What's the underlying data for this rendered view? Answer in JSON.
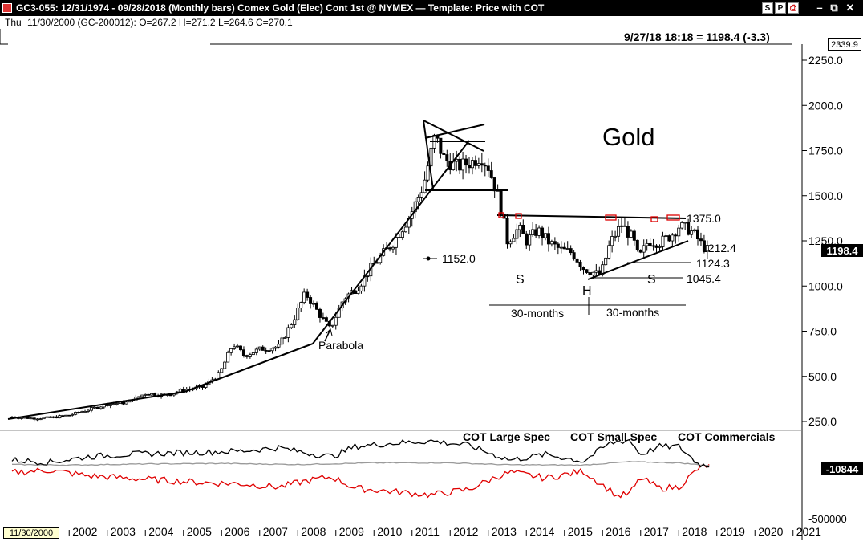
{
  "window": {
    "title": "GC3-055:  12/31/1974 - 09/28/2018  (Monthly bars)   Comex Gold (Elec) Cont 1st @ NYMEX  —  Template: Price with COT",
    "buttons": [
      "S",
      "P",
      "⎙"
    ]
  },
  "info_bar": {
    "day": "Thu",
    "ohlc": "11/30/2000 (GC-200012):  O=267.2  H=271.2  L=264.6  C=270.1"
  },
  "last_price": "9/27/18 18:18 = 1198.4 (-3.3)",
  "price_axis_top_label": "2339.9",
  "price_axis_current": "1198.4",
  "cot_axis_current": "-10844",
  "cursor_date": "11/30/2000",
  "chart_data": {
    "type": "candlestick",
    "title": "Gold",
    "price_axis": {
      "range": [
        50,
        2330
      ],
      "ticks": [
        250,
        500,
        750,
        1000,
        1250,
        1500,
        1750,
        2000,
        2250
      ],
      "tick_labels": [
        "250.0",
        "500.0",
        "750.0",
        "1000.0",
        "1250.0",
        "1500.0",
        "1750.0",
        "2000.0",
        "2250.0"
      ]
    },
    "x_axis": {
      "range": [
        2000.5,
        2021.2
      ],
      "years": [
        2002,
        2003,
        2004,
        2005,
        2006,
        2007,
        2008,
        2009,
        2010,
        2011,
        2012,
        2013,
        2014,
        2015,
        2016,
        2017,
        2018,
        2019,
        2020,
        2021
      ],
      "year_labels": [
        "2002",
        "2003",
        "2004",
        "2005",
        "2006",
        "2007",
        "2008",
        "2009",
        "2010",
        "2011",
        "2012",
        "2013",
        "2014",
        "2015",
        "2016",
        "2017",
        "2018",
        "2019",
        "2020",
        "2021"
      ]
    },
    "price_series": [
      [
        2000.5,
        275
      ],
      [
        2001.0,
        268
      ],
      [
        2001.5,
        270
      ],
      [
        2002.0,
        285
      ],
      [
        2002.5,
        315
      ],
      [
        2003.0,
        345
      ],
      [
        2003.5,
        355
      ],
      [
        2004.0,
        405
      ],
      [
        2004.5,
        395
      ],
      [
        2005.0,
        425
      ],
      [
        2005.5,
        440
      ],
      [
        2005.95,
        515
      ],
      [
        2006.3,
        680
      ],
      [
        2006.6,
        615
      ],
      [
        2007.0,
        650
      ],
      [
        2007.5,
        665
      ],
      [
        2007.9,
        820
      ],
      [
        2008.2,
        960
      ],
      [
        2008.6,
        835
      ],
      [
        2008.85,
        760
      ],
      [
        2009.2,
        930
      ],
      [
        2009.6,
        1000
      ],
      [
        2009.95,
        1110
      ],
      [
        2010.5,
        1240
      ],
      [
        2010.95,
        1390
      ],
      [
        2011.3,
        1560
      ],
      [
        2011.6,
        1830
      ],
      [
        2011.85,
        1700
      ],
      [
        2012.2,
        1660
      ],
      [
        2012.6,
        1690
      ],
      [
        2012.8,
        1720
      ],
      [
        2013.0,
        1660
      ],
      [
        2013.3,
        1470
      ],
      [
        2013.5,
        1250
      ],
      [
        2013.8,
        1320
      ],
      [
        2014.0,
        1250
      ],
      [
        2014.3,
        1310
      ],
      [
        2014.6,
        1240
      ],
      [
        2014.9,
        1200
      ],
      [
        2015.2,
        1185
      ],
      [
        2015.5,
        1100
      ],
      [
        2015.8,
        1070
      ],
      [
        2015.95,
        1060
      ],
      [
        2016.2,
        1240
      ],
      [
        2016.5,
        1340
      ],
      [
        2016.8,
        1260
      ],
      [
        2016.95,
        1150
      ],
      [
        2017.2,
        1250
      ],
      [
        2017.5,
        1240
      ],
      [
        2017.8,
        1280
      ],
      [
        2018.0,
        1330
      ],
      [
        2018.2,
        1320
      ],
      [
        2018.4,
        1290
      ],
      [
        2018.6,
        1230
      ],
      [
        2018.75,
        1200
      ]
    ],
    "annotations": {
      "gold_label": "Gold",
      "parabola": "Parabola",
      "level_1152": "1152.0",
      "level_1375": "1375.0",
      "level_1212": "1212.4",
      "level_1124": "1124.3",
      "level_1045": "1045.4",
      "left_shoulder": "S",
      "head": "H",
      "right_shoulder": "S",
      "months_left": "30-months",
      "months_right": "30-months"
    },
    "cot": {
      "legend": [
        "COT Large Spec",
        "COT Small Spec",
        "COT Commercials"
      ],
      "colors": [
        "#000000",
        "#9a9a9a",
        "#e00000"
      ],
      "axis_range": [
        -500000,
        300000
      ],
      "axis_labels": [
        "-500000"
      ],
      "large_spec": [
        [
          2000.5,
          50000
        ],
        [
          2001.5,
          30000
        ],
        [
          2002.5,
          80000
        ],
        [
          2003.5,
          100000
        ],
        [
          2004.5,
          110000
        ],
        [
          2005.5,
          120000
        ],
        [
          2006.5,
          130000
        ],
        [
          2007.5,
          160000
        ],
        [
          2008.3,
          110000
        ],
        [
          2008.9,
          80000
        ],
        [
          2009.5,
          170000
        ],
        [
          2010.5,
          200000
        ],
        [
          2011.5,
          220000
        ],
        [
          2012.5,
          180000
        ],
        [
          2013.2,
          90000
        ],
        [
          2013.6,
          50000
        ],
        [
          2014.5,
          100000
        ],
        [
          2015.5,
          40000
        ],
        [
          2016.2,
          200000
        ],
        [
          2016.7,
          230000
        ],
        [
          2017.0,
          100000
        ],
        [
          2017.5,
          170000
        ],
        [
          2018.0,
          170000
        ],
        [
          2018.5,
          20000
        ],
        [
          2018.8,
          -10844
        ]
      ],
      "small_spec": [
        [
          2000.5,
          10000
        ],
        [
          2002.0,
          5000
        ],
        [
          2004.0,
          15000
        ],
        [
          2006.0,
          20000
        ],
        [
          2008.0,
          10000
        ],
        [
          2010.0,
          25000
        ],
        [
          2012.0,
          25000
        ],
        [
          2013.5,
          8000
        ],
        [
          2015.5,
          5000
        ],
        [
          2016.7,
          35000
        ],
        [
          2018.0,
          25000
        ],
        [
          2018.8,
          0
        ]
      ],
      "commercials": [
        [
          2000.5,
          -60000
        ],
        [
          2001.5,
          -40000
        ],
        [
          2002.5,
          -90000
        ],
        [
          2003.5,
          -110000
        ],
        [
          2004.5,
          -130000
        ],
        [
          2005.5,
          -150000
        ],
        [
          2006.5,
          -160000
        ],
        [
          2007.5,
          -190000
        ],
        [
          2008.3,
          -130000
        ],
        [
          2008.9,
          -100000
        ],
        [
          2009.5,
          -200000
        ],
        [
          2010.5,
          -230000
        ],
        [
          2011.5,
          -260000
        ],
        [
          2012.5,
          -210000
        ],
        [
          2013.2,
          -100000
        ],
        [
          2013.6,
          -60000
        ],
        [
          2014.5,
          -110000
        ],
        [
          2015.5,
          -50000
        ],
        [
          2016.2,
          -220000
        ],
        [
          2016.4,
          -270000
        ],
        [
          2016.7,
          -250000
        ],
        [
          2017.0,
          -110000
        ],
        [
          2017.5,
          -200000
        ],
        [
          2018.0,
          -190000
        ],
        [
          2018.5,
          -30000
        ],
        [
          2018.8,
          10844
        ]
      ]
    }
  }
}
